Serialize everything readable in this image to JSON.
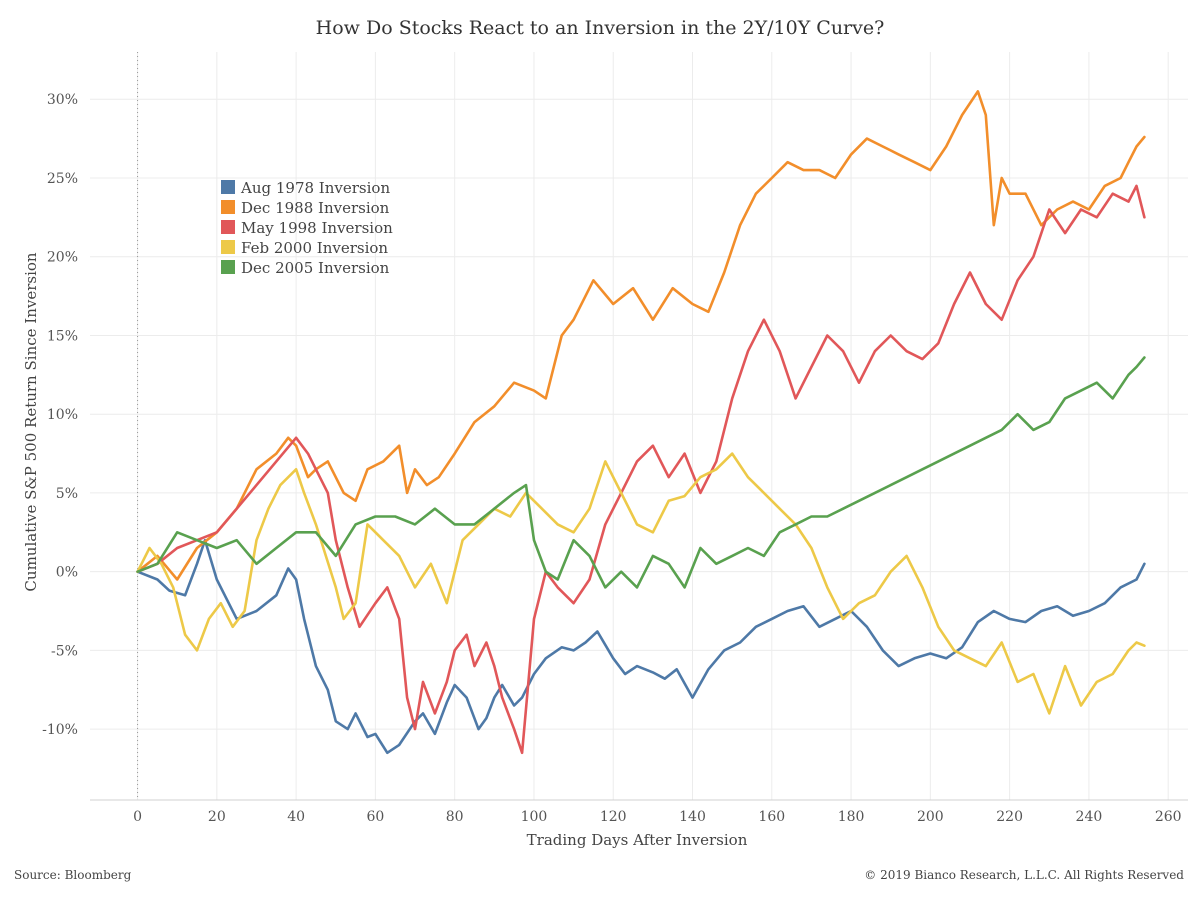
{
  "chart_data": {
    "type": "line",
    "title": "How Do Stocks React to an Inversion in the 2Y/10Y Curve?",
    "xlabel": "Trading Days After Inversion",
    "ylabel": "Cumulative S&P 500 Return Since Inversion",
    "xlim": [
      -12,
      265
    ],
    "ylim": [
      -14.5,
      33
    ],
    "x_ticks": [
      0,
      20,
      40,
      60,
      80,
      100,
      120,
      140,
      160,
      180,
      200,
      220,
      240,
      260
    ],
    "y_ticks": [
      -10,
      -5,
      0,
      5,
      10,
      15,
      20,
      25,
      30
    ],
    "y_tick_labels": [
      "-10%",
      "-5%",
      "0%",
      "5%",
      "10%",
      "15%",
      "20%",
      "25%",
      "30%"
    ],
    "grid": true,
    "legend_position": "top-left",
    "series": [
      {
        "name": "Aug 1978 Inversion",
        "color": "#4e79a7",
        "x": [
          0,
          5,
          8,
          12,
          15,
          17,
          20,
          25,
          30,
          35,
          38,
          40,
          42,
          45,
          48,
          50,
          53,
          55,
          58,
          60,
          63,
          66,
          70,
          72,
          75,
          78,
          80,
          83,
          86,
          88,
          90,
          92,
          95,
          97,
          100,
          103,
          107,
          110,
          113,
          116,
          120,
          123,
          126,
          130,
          133,
          136,
          140,
          144,
          148,
          152,
          156,
          160,
          164,
          168,
          172,
          176,
          180,
          184,
          188,
          192,
          196,
          200,
          204,
          208,
          212,
          216,
          220,
          224,
          228,
          232,
          236,
          240,
          244,
          248,
          252,
          254
        ],
        "y": [
          0,
          -0.5,
          -1.2,
          -1.5,
          0.5,
          2,
          -0.5,
          -3,
          -2.5,
          -1.5,
          0.2,
          -0.5,
          -3,
          -6,
          -7.5,
          -9.5,
          -10,
          -9,
          -10.5,
          -10.3,
          -11.5,
          -11,
          -9.5,
          -9,
          -10.3,
          -8.3,
          -7.2,
          -8,
          -10,
          -9.3,
          -8,
          -7.2,
          -8.5,
          -8,
          -6.5,
          -5.5,
          -4.8,
          -5,
          -4.5,
          -3.8,
          -5.5,
          -6.5,
          -6,
          -6.4,
          -6.8,
          -6.2,
          -8,
          -6.2,
          -5,
          -4.5,
          -3.5,
          -3,
          -2.5,
          -2.2,
          -3.5,
          -3,
          -2.5,
          -3.5,
          -5,
          -6,
          -5.5,
          -5.2,
          -5.5,
          -4.8,
          -3.2,
          -2.5,
          -3,
          -3.2,
          -2.5,
          -2.2,
          -2.8,
          -2.5,
          -2,
          -1,
          -0.5,
          0.5
        ]
      },
      {
        "name": "Dec 1988 Inversion",
        "color": "#f28e2b",
        "x": [
          0,
          5,
          10,
          15,
          20,
          25,
          30,
          35,
          38,
          40,
          43,
          45,
          48,
          52,
          55,
          58,
          62,
          66,
          68,
          70,
          73,
          76,
          80,
          85,
          90,
          95,
          100,
          103,
          107,
          110,
          115,
          120,
          125,
          130,
          135,
          140,
          144,
          148,
          152,
          156,
          160,
          164,
          168,
          172,
          176,
          180,
          184,
          188,
          192,
          196,
          200,
          204,
          208,
          212,
          214,
          216,
          218,
          220,
          224,
          228,
          232,
          236,
          240,
          244,
          248,
          250,
          252,
          254
        ],
        "y": [
          0,
          1,
          -0.5,
          1.5,
          2.5,
          4,
          6.5,
          7.5,
          8.5,
          8,
          6,
          6.5,
          7,
          5,
          4.5,
          6.5,
          7,
          8,
          5,
          6.5,
          5.5,
          6,
          7.5,
          9.5,
          10.5,
          12,
          11.5,
          11,
          15,
          16,
          18.5,
          17,
          18,
          16,
          18,
          17,
          16.5,
          19,
          22,
          24,
          25,
          26,
          25.5,
          25.5,
          25,
          26.5,
          27.5,
          27,
          26.5,
          26,
          25.5,
          27,
          29,
          30.5,
          29,
          22,
          25,
          24,
          24,
          22,
          23,
          23.5,
          23,
          24.5,
          25,
          26,
          27,
          27.6
        ]
      },
      {
        "name": "May 1998 Inversion",
        "color": "#e15759",
        "x": [
          0,
          5,
          10,
          15,
          20,
          25,
          30,
          35,
          40,
          43,
          45,
          48,
          50,
          53,
          56,
          60,
          63,
          66,
          68,
          70,
          72,
          75,
          78,
          80,
          83,
          85,
          88,
          90,
          92,
          95,
          97,
          100,
          103,
          106,
          110,
          114,
          118,
          122,
          126,
          130,
          134,
          138,
          142,
          146,
          150,
          154,
          158,
          162,
          166,
          170,
          174,
          178,
          182,
          186,
          190,
          194,
          198,
          202,
          206,
          210,
          214,
          218,
          222,
          226,
          230,
          234,
          238,
          242,
          246,
          250,
          252,
          254
        ],
        "y": [
          0,
          0.5,
          1.5,
          2,
          2.5,
          4,
          5.5,
          7,
          8.5,
          7.5,
          6.5,
          5,
          2,
          -1,
          -3.5,
          -2,
          -1,
          -3,
          -8,
          -10,
          -7,
          -9,
          -7,
          -5,
          -4,
          -6,
          -4.5,
          -6,
          -8,
          -10,
          -11.5,
          -3,
          0,
          -1,
          -2,
          -0.5,
          3,
          5,
          7,
          8,
          6,
          7.5,
          5,
          7,
          11,
          14,
          16,
          14,
          11,
          13,
          15,
          14,
          12,
          14,
          15,
          14,
          13.5,
          14.5,
          17,
          19,
          17,
          16,
          18.5,
          20,
          23,
          21.5,
          23,
          22.5,
          24,
          23.5,
          24.5,
          22.5
        ]
      },
      {
        "name": "Feb 2000 Inversion",
        "color": "#edc948",
        "x": [
          0,
          3,
          6,
          9,
          12,
          15,
          18,
          21,
          24,
          27,
          30,
          33,
          36,
          40,
          42,
          45,
          50,
          52,
          55,
          58,
          62,
          66,
          70,
          74,
          78,
          82,
          86,
          90,
          94,
          98,
          102,
          106,
          110,
          114,
          118,
          122,
          126,
          130,
          134,
          138,
          142,
          146,
          150,
          154,
          158,
          162,
          166,
          170,
          174,
          178,
          182,
          186,
          190,
          194,
          198,
          202,
          206,
          210,
          214,
          218,
          222,
          226,
          230,
          234,
          238,
          242,
          246,
          250,
          252,
          254
        ],
        "y": [
          0,
          1.5,
          0.5,
          -1,
          -4,
          -5,
          -3,
          -2,
          -3.5,
          -2.5,
          2,
          4,
          5.5,
          6.5,
          5,
          3,
          -1,
          -3,
          -2,
          3,
          2,
          1,
          -1,
          0.5,
          -2,
          2,
          3,
          4,
          3.5,
          5,
          4,
          3,
          2.5,
          4,
          7,
          5,
          3,
          2.5,
          4.5,
          4.8,
          6,
          6.5,
          7.5,
          6,
          5,
          4,
          3,
          1.5,
          -1,
          -3,
          -2,
          -1.5,
          0,
          1,
          -1,
          -3.5,
          -5,
          -5.5,
          -6,
          -4.5,
          -7,
          -6.5,
          -9,
          -6,
          -8.5,
          -7,
          -6.5,
          -5,
          -4.5,
          -4.7
        ]
      },
      {
        "name": "Dec 2005 Inversion",
        "color": "#59a14f",
        "x": [
          0,
          5,
          10,
          15,
          20,
          25,
          30,
          35,
          40,
          45,
          50,
          55,
          60,
          65,
          70,
          75,
          80,
          85,
          90,
          95,
          98,
          100,
          103,
          106,
          110,
          114,
          118,
          122,
          126,
          130,
          134,
          138,
          142,
          146,
          150,
          154,
          158,
          162,
          166,
          170,
          174,
          178,
          182,
          186,
          190,
          194,
          198,
          202,
          206,
          210,
          214,
          218,
          222,
          226,
          230,
          234,
          238,
          242,
          246,
          250,
          252,
          254
        ],
        "y": [
          0,
          0.5,
          2.5,
          2,
          1.5,
          2,
          0.5,
          1.5,
          2.5,
          2.5,
          1,
          3,
          3.5,
          3.5,
          3,
          4,
          3,
          3,
          4,
          5,
          5.5,
          2,
          0,
          -0.5,
          2,
          1,
          -1,
          0,
          -1,
          1,
          0.5,
          -1,
          1.5,
          0.5,
          1,
          1.5,
          1,
          2.5,
          3,
          3.5,
          3.5,
          4,
          4.5,
          5,
          5.5,
          6,
          6.5,
          7,
          7.5,
          8,
          8.5,
          9,
          10,
          9,
          9.5,
          11,
          11.5,
          12,
          11,
          12.5,
          13,
          13.6
        ]
      }
    ]
  },
  "footer": {
    "source": "Source: Bloomberg",
    "copyright": "© 2019 Bianco Research, L.L.C. All Rights Reserved"
  }
}
